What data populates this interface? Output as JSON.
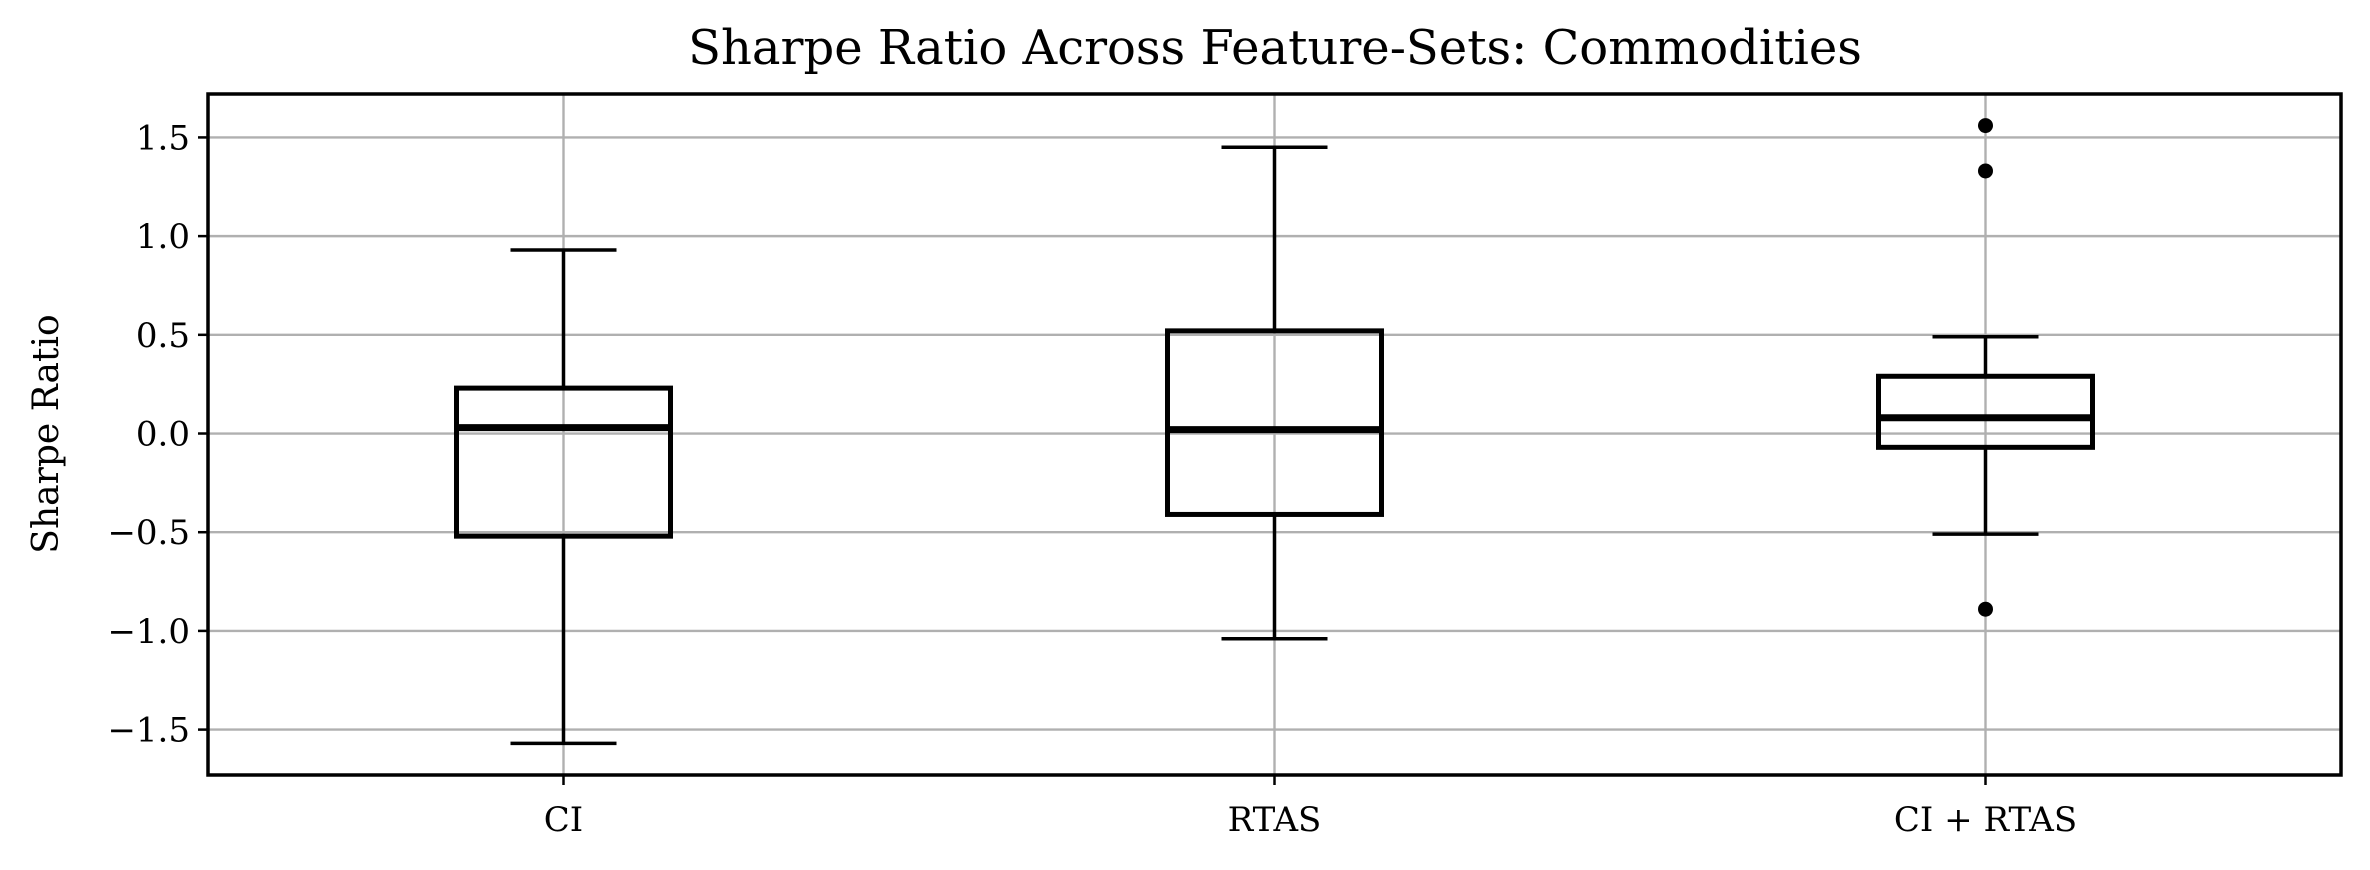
{
  "chart_data": {
    "type": "box",
    "title": "Sharpe Ratio Across Feature-Sets: Commodities",
    "xlabel": "",
    "ylabel": "Sharpe Ratio",
    "ylim": [
      -1.73,
      1.72
    ],
    "yticks": [
      1.5,
      1.0,
      0.5,
      0.0,
      -0.5,
      -1.0,
      -1.5
    ],
    "ytick_labels": [
      "1.5",
      "1.0",
      "0.5",
      "0.0",
      "−0.5",
      "−1.0",
      "−1.5"
    ],
    "grid": true,
    "categories": [
      "CI",
      "RTAS",
      "CI + RTAS"
    ],
    "boxes": [
      {
        "label": "CI",
        "whisker_low": -1.57,
        "q1": -0.52,
        "median": 0.03,
        "q3": 0.23,
        "whisker_high": 0.93,
        "fliers": []
      },
      {
        "label": "RTAS",
        "whisker_low": -1.04,
        "q1": -0.41,
        "median": 0.02,
        "q3": 0.52,
        "whisker_high": 1.45,
        "fliers": []
      },
      {
        "label": "CI + RTAS",
        "whisker_low": -0.51,
        "q1": -0.07,
        "median": 0.08,
        "q3": 0.29,
        "whisker_high": 0.49,
        "fliers": [
          1.56,
          1.33,
          -0.89
        ]
      }
    ]
  }
}
